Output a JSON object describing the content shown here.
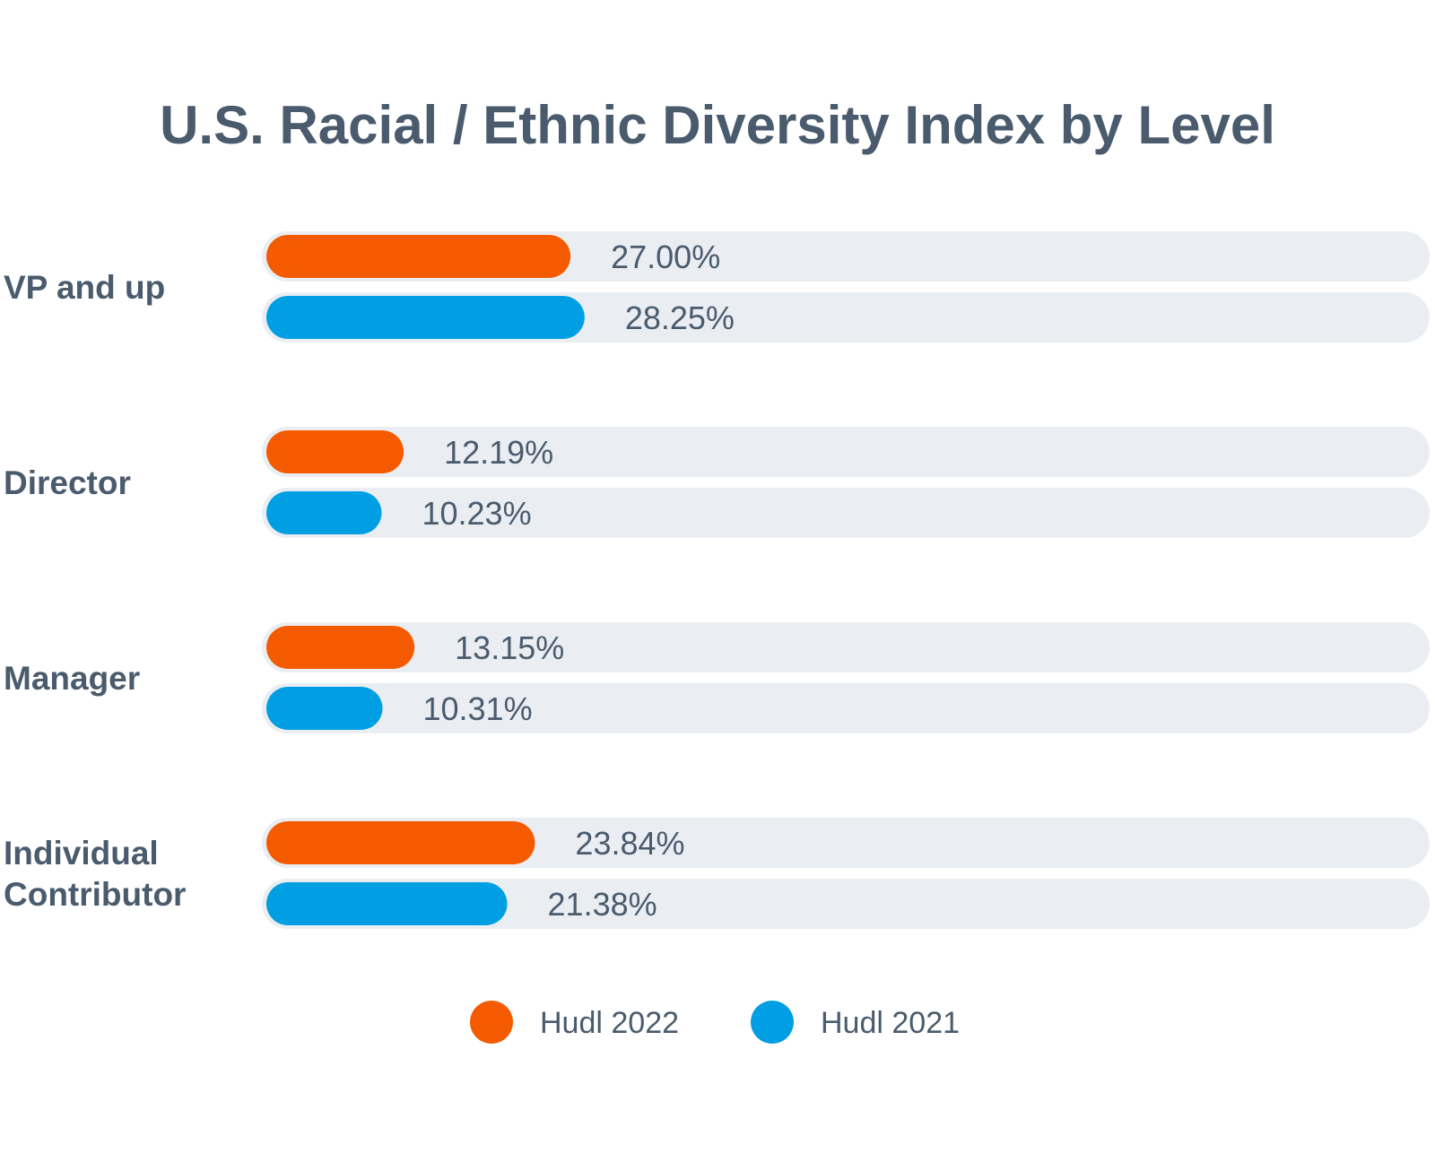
{
  "chart_data": {
    "type": "bar",
    "orientation": "horizontal",
    "title": "U.S. Racial / Ethnic Diversity Index by Level",
    "categories": [
      [
        "VP and up"
      ],
      [
        "Director"
      ],
      [
        "Manager"
      ],
      [
        "Individual",
        "Contributor"
      ]
    ],
    "series": [
      {
        "name": "Hudl 2022",
        "color": "#f45b00",
        "values": [
          27.0,
          12.19,
          13.15,
          23.84
        ],
        "labels": [
          "27.00%",
          "12.19%",
          "13.15%",
          "23.84%"
        ]
      },
      {
        "name": "Hudl 2021",
        "color": "#009fe3",
        "values": [
          28.25,
          10.23,
          10.31,
          21.38
        ],
        "labels": [
          "28.25%",
          "10.23%",
          "10.31%",
          "21.38%"
        ]
      }
    ],
    "xlim": [
      0,
      100
    ],
    "track_color": "#eaeef2",
    "text_color": "#4a5b6d",
    "grid": false,
    "legend_position": "bottom-center"
  }
}
